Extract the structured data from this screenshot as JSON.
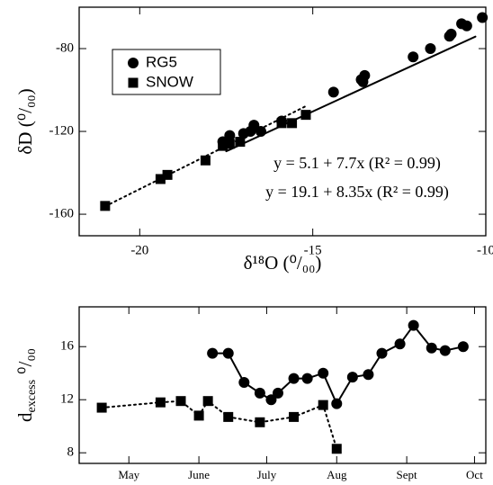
{
  "chart_data": [
    {
      "type": "scatter",
      "xlabel": "δ¹⁸O (⁰/₀₀)",
      "ylabel": "δD (⁰/₀₀)",
      "xlim": [
        -21.75,
        -10
      ],
      "ylim": [
        -170.4,
        -60
      ],
      "xticks": [
        -20,
        -15,
        -10
      ],
      "yticks": [
        -160,
        -120,
        -80
      ],
      "legend": "upper left",
      "series": [
        {
          "name": "RG5",
          "color": "#000000",
          "marker": "circle",
          "x": [
            -10.1,
            -10.55,
            -10.7,
            -11.0,
            -11.05,
            -11.6,
            -12.1,
            -13.5,
            -13.55,
            -13.6,
            -14.4,
            -15.9,
            -16.5,
            -16.7,
            -16.8,
            -17.0,
            -17.4,
            -17.6
          ],
          "values": [
            -65,
            -69,
            -68,
            -73,
            -74,
            -80,
            -84,
            -93,
            -96,
            -95,
            -101,
            -115,
            -120,
            -117,
            -120,
            -121,
            -122,
            -125
          ]
        },
        {
          "name": "SNOW",
          "color": "#000000",
          "marker": "square",
          "x": [
            -21.0,
            -19.4,
            -19.2,
            -18.1,
            -17.6,
            -17.4,
            -17.1,
            -15.9,
            -15.6,
            -15.2
          ],
          "values": [
            -156,
            -143,
            -141,
            -134,
            -127,
            -126,
            -125,
            -116,
            -116,
            -112
          ]
        }
      ],
      "fits": [
        {
          "dash": "solid",
          "x": [
            -17.5,
            -10.3
          ],
          "values": [
            -129.6,
            -74.2
          ]
        },
        {
          "dash": "dotted",
          "x": [
            -21.0,
            -15.2
          ],
          "values": [
            -156.2,
            -107.8
          ]
        }
      ],
      "annotations": [
        "y = 5.1 + 7.7x (R² = 0.99)",
        "y = 19.1 + 8.35x (R² = 0.99)"
      ]
    },
    {
      "type": "line",
      "ylabel": {
        "text": "d",
        "sub": "excess",
        "unit": "⁰/₀₀"
      },
      "xlim": [
        99,
        279
      ],
      "ylim": [
        7.2,
        19
      ],
      "xticks": [
        {
          "value": 121,
          "label": "May"
        },
        {
          "value": 152,
          "label": "June"
        },
        {
          "value": 182,
          "label": "July"
        },
        {
          "value": 213,
          "label": "Aug"
        },
        {
          "value": 244,
          "label": "Sept"
        },
        {
          "value": 274,
          "label": "Oct"
        }
      ],
      "yticks": [
        8,
        12,
        16
      ],
      "series": [
        {
          "name": "RG5",
          "color": "#000000",
          "marker": "circle",
          "dash": "solid",
          "x": [
            158,
            165,
            172,
            179,
            184,
            187,
            194,
            200,
            207,
            213,
            220,
            227,
            233,
            241,
            247,
            255,
            261,
            269
          ],
          "values": [
            15.5,
            15.5,
            13.3,
            12.5,
            12.0,
            12.5,
            13.6,
            13.6,
            14.0,
            11.7,
            13.7,
            13.9,
            15.5,
            16.2,
            17.6,
            15.9,
            15.7,
            16.0
          ]
        },
        {
          "name": "SNOW",
          "color": "#000000",
          "marker": "square",
          "dash": "dotted",
          "x": [
            109,
            135,
            144,
            152,
            156,
            165,
            179,
            194,
            207,
            213
          ],
          "values": [
            11.4,
            11.8,
            11.9,
            10.8,
            11.9,
            10.7,
            10.3,
            10.7,
            11.6,
            8.3
          ]
        }
      ]
    }
  ]
}
